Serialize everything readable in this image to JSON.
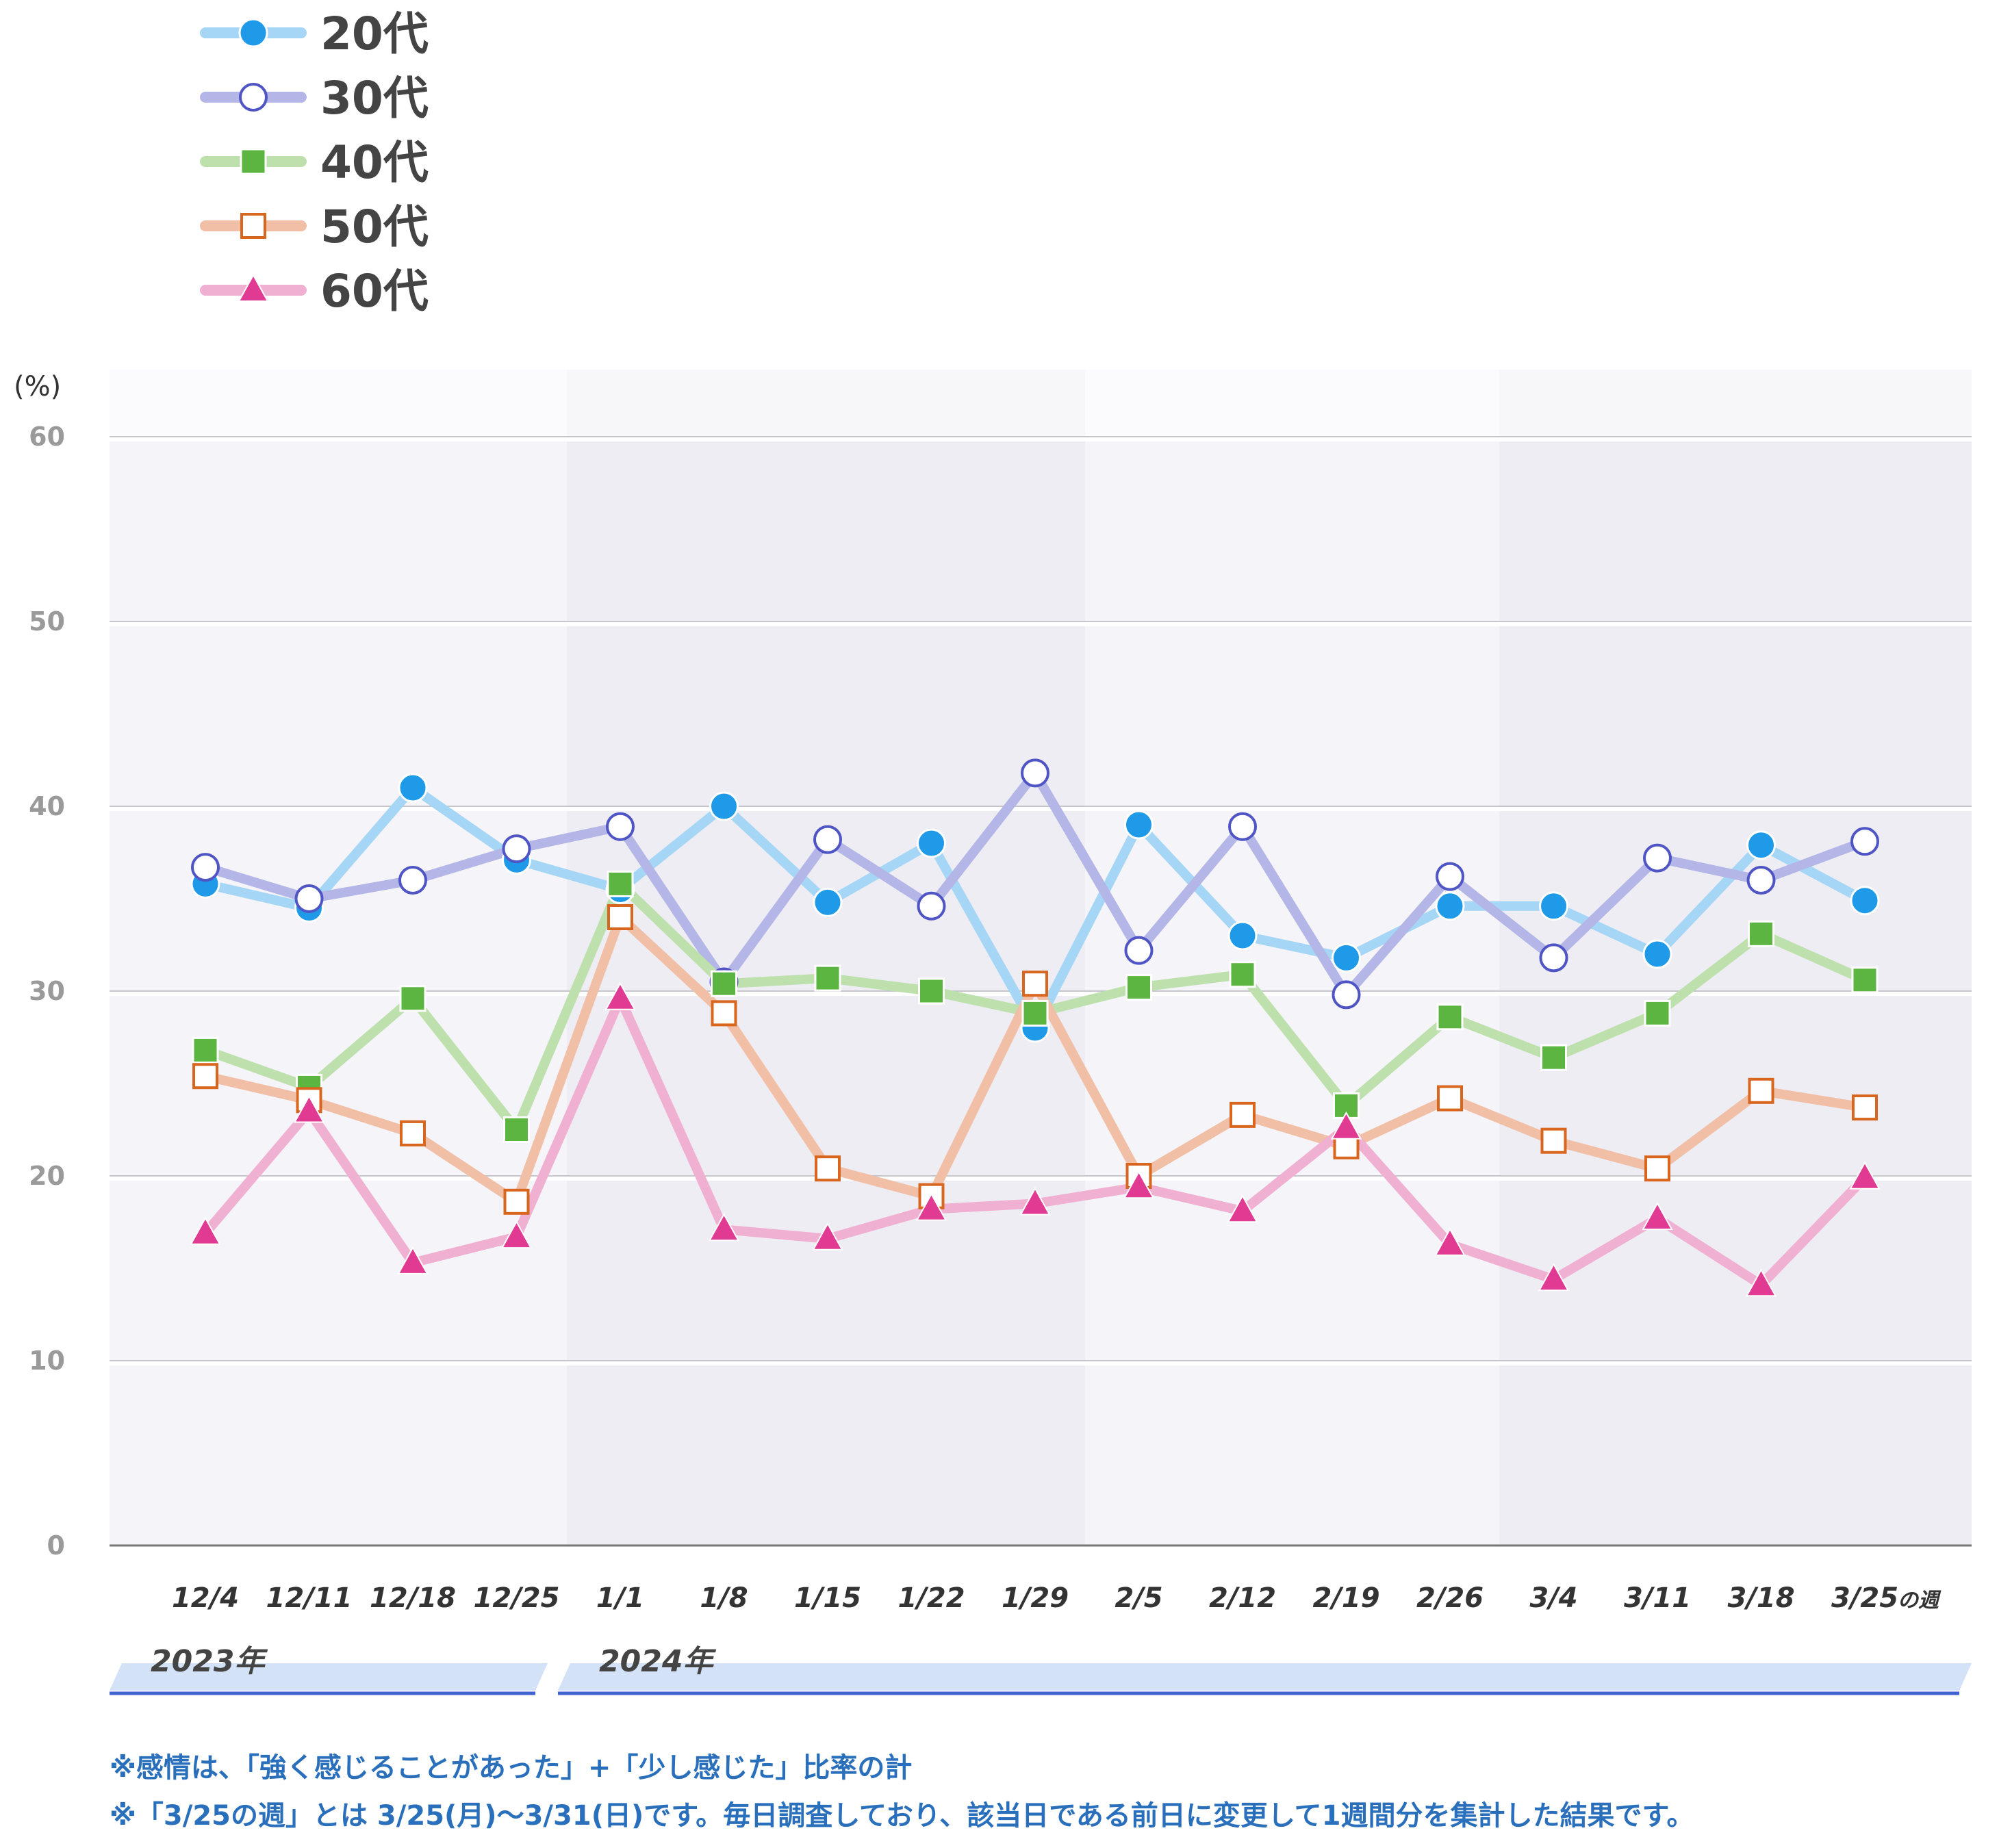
{
  "chart_data": {
    "type": "line",
    "unit": "(%)",
    "ylim": [
      0,
      60
    ],
    "yticks": [
      0,
      10,
      20,
      30,
      40,
      50,
      60
    ],
    "categories": [
      "12/4",
      "12/11",
      "12/18",
      "12/25",
      "1/1",
      "1/8",
      "1/15",
      "1/22",
      "1/29",
      "2/5",
      "2/12",
      "2/19",
      "2/26",
      "3/4",
      "3/11",
      "3/18",
      "3/25"
    ],
    "last_category_suffix": "の週",
    "years": [
      {
        "label": "2023年",
        "categories": [
          "12/4",
          "12/11",
          "12/18",
          "12/25"
        ]
      },
      {
        "label": "2024年",
        "categories": [
          "1/1",
          "1/8",
          "1/15",
          "1/22",
          "1/29",
          "2/5",
          "2/12",
          "2/19",
          "2/26",
          "3/4",
          "3/11",
          "3/18",
          "3/25"
        ]
      }
    ],
    "grid": "horizontal",
    "legend_position": "top-left",
    "series": [
      {
        "name": "20代",
        "marker": "circle-filled",
        "line_color": "#a6d6f5",
        "marker_color": "#1f9ae8",
        "values": [
          35.8,
          34.5,
          41.0,
          37.1,
          35.5,
          40.0,
          34.8,
          38.0,
          28.0,
          39.0,
          33.0,
          31.8,
          34.6,
          34.6,
          32.0,
          37.9,
          34.9
        ]
      },
      {
        "name": "30代",
        "marker": "circle-open",
        "line_color": "#b3b6e6",
        "marker_color": "#4f55c4",
        "values": [
          36.7,
          35.0,
          36.0,
          37.7,
          38.9,
          30.5,
          38.2,
          34.6,
          41.8,
          32.2,
          38.9,
          29.8,
          36.2,
          31.8,
          37.2,
          36.0,
          38.1
        ]
      },
      {
        "name": "40代",
        "marker": "square-filled",
        "line_color": "#bde0ad",
        "marker_color": "#5bb540",
        "values": [
          26.8,
          24.8,
          29.6,
          22.5,
          35.8,
          30.4,
          30.7,
          30.0,
          28.8,
          30.2,
          30.9,
          23.8,
          28.6,
          26.4,
          28.8,
          33.1,
          30.6
        ]
      },
      {
        "name": "50代",
        "marker": "square-open",
        "line_color": "#f0bfa6",
        "marker_color": "#d9661e",
        "values": [
          25.4,
          24.1,
          22.3,
          18.6,
          34.0,
          28.8,
          20.4,
          18.9,
          30.4,
          20.0,
          23.3,
          21.6,
          24.2,
          21.9,
          20.4,
          24.6,
          23.7
        ]
      },
      {
        "name": "60代",
        "marker": "triangle-filled",
        "line_color": "#f0b0d2",
        "marker_color": "#e03a93",
        "values": [
          16.9,
          23.5,
          15.3,
          16.7,
          29.6,
          17.1,
          16.6,
          18.2,
          18.5,
          19.4,
          18.1,
          22.6,
          16.3,
          14.4,
          17.7,
          14.1,
          19.9
        ]
      }
    ]
  },
  "notes": [
    "※感情は、「強く感じることがあった」+「少し感じた」比率の計",
    "※「3/25の週」とは 3/25(月)～3/31(日)です。毎日調査しており、該当日である前日に変更して1週間分を集計した結果です。"
  ]
}
